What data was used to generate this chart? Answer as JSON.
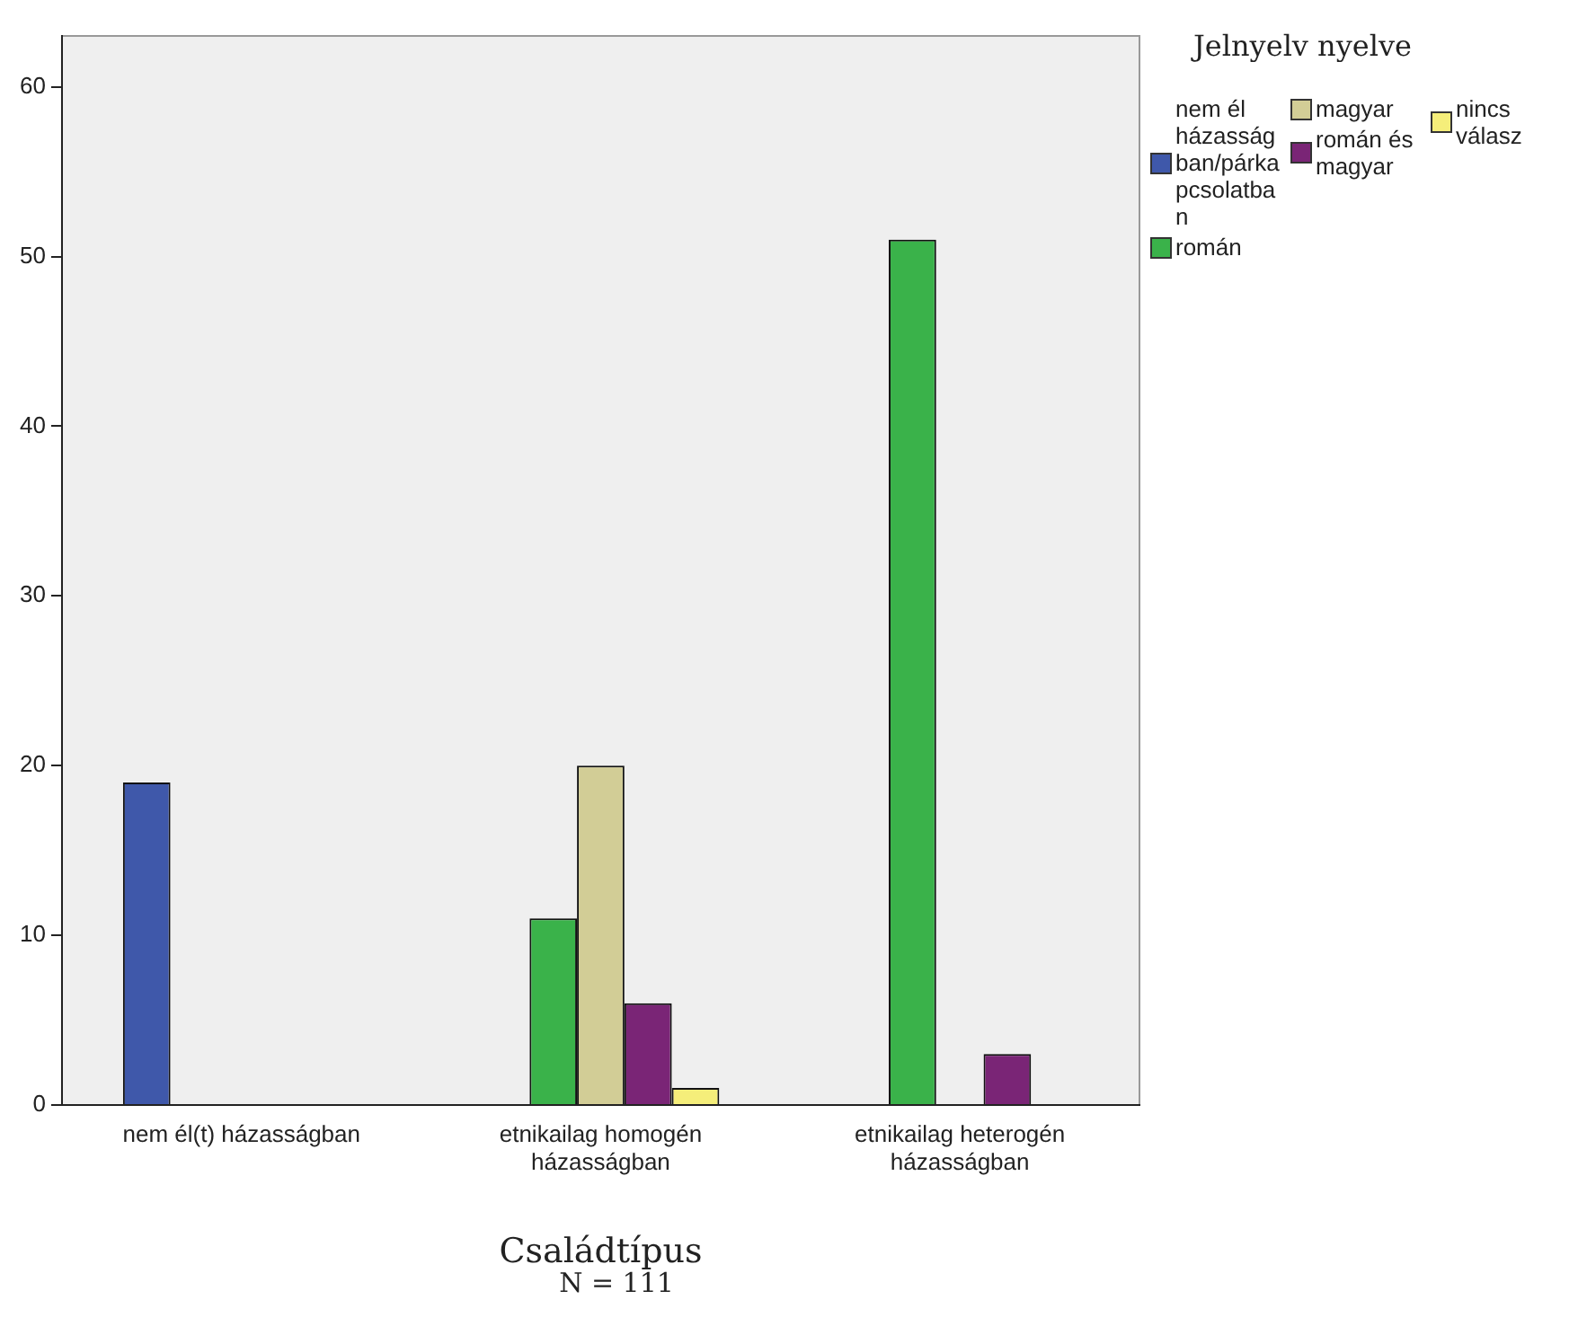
{
  "chart_data": {
    "type": "bar",
    "xlabel": "Családtípus",
    "legend_title": "Jelnyelv nyelve",
    "annotations": [
      "N = 111"
    ],
    "categories": [
      "nem él(t) házasságban",
      "etnikailag homogén házasságban",
      "etnikailag heterogén házasságban"
    ],
    "series": [
      {
        "name": "nem él házasságban/párkapcsolatban",
        "color": "#3f58aa",
        "values": [
          19,
          null,
          null
        ]
      },
      {
        "name": "román",
        "color": "#3ab24a",
        "values": [
          null,
          11,
          51
        ]
      },
      {
        "name": "magyar",
        "color": "#d2cd96",
        "values": [
          null,
          20,
          null
        ]
      },
      {
        "name": "román és magyar",
        "color": "#7a2576",
        "values": [
          null,
          6,
          3
        ]
      },
      {
        "name": "nincs válasz",
        "color": "#f5ee7a",
        "values": [
          null,
          1,
          null
        ]
      }
    ],
    "ylim": [
      0,
      63
    ],
    "yticks": [
      0,
      10,
      20,
      30,
      40,
      50,
      60
    ],
    "grid": false,
    "legend": "top right"
  }
}
